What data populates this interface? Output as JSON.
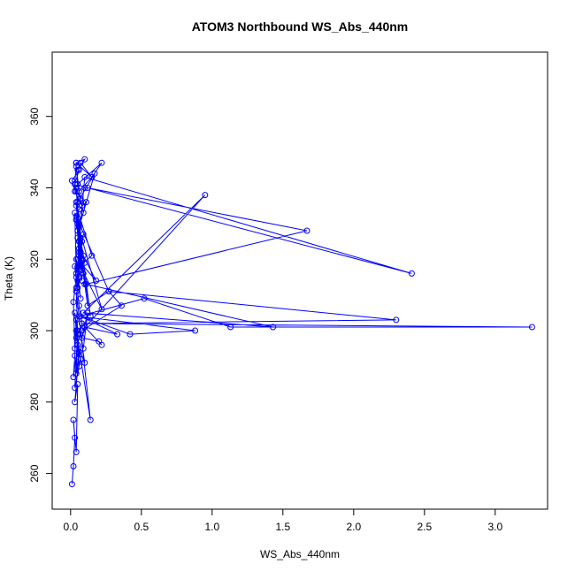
{
  "chart_data": {
    "type": "line",
    "title": "ATOM3 Northbound WS_Abs_440nm",
    "xlabel": "WS_Abs_440nm",
    "ylabel": "Theta (K)",
    "xlim": [
      -0.13,
      3.37
    ],
    "ylim": [
      250,
      378
    ],
    "xticks": [
      "0.0",
      "0.5",
      "1.0",
      "1.5",
      "2.0",
      "2.5",
      "3.0"
    ],
    "yticks": [
      "260",
      "280",
      "300",
      "320",
      "340",
      "360"
    ],
    "grid": false,
    "legend": "none",
    "series_style": "points-and-lines",
    "colors": {
      "series": "#0000ff",
      "axis": "#000000",
      "background": "#ffffff"
    },
    "series": [
      {
        "x": [
          0.01,
          0.02,
          0.03,
          0.02,
          0.04,
          0.05,
          0.03,
          0.06,
          0.04,
          0.05,
          0.03,
          0.07,
          0.04,
          0.05,
          0.02,
          0.03,
          0.04,
          0.06,
          0.03,
          0.05,
          0.04,
          0.14,
          0.04,
          0.03,
          0.02,
          0.04,
          0.05,
          0.03,
          0.06,
          0.08,
          0.05,
          0.1,
          0.07,
          0.09,
          0.12,
          0.08,
          0.2,
          0.22,
          0.1,
          0.33,
          0.07,
          0.42,
          0.88,
          0.06,
          0.52,
          1.13,
          3.26,
          0.08,
          2.3,
          0.27,
          0.36,
          0.08,
          0.95,
          0.09,
          1.43,
          0.11,
          1.67,
          0.12,
          2.41,
          0.1,
          0.06,
          0.04,
          0.07,
          0.18,
          0.09,
          0.05,
          0.06,
          0.15,
          0.04,
          0.07,
          0.05,
          0.14,
          0.06,
          0.03,
          0.04,
          0.09,
          0.05,
          0.07,
          0.04,
          0.06,
          0.05,
          0.1,
          0.06,
          0.08,
          0.07,
          0.05,
          0.09,
          0.04,
          0.06,
          0.08,
          0.05,
          0.07,
          0.1,
          0.06,
          0.04,
          0.27,
          0.12,
          0.05,
          0.07,
          0.04,
          0.06,
          0.08,
          0.05,
          0.22,
          0.07,
          0.04,
          0.06,
          0.17,
          0.05,
          0.03,
          0.04,
          0.1,
          0.05,
          0.07,
          0.15,
          0.06,
          0.04,
          0.05,
          0.08,
          0.03,
          0.11,
          0.06,
          0.04,
          0.05,
          0.09,
          0.07,
          0.04,
          0.01,
          0.06,
          0.03,
          0.04,
          0.15,
          0.22,
          0.05,
          0.1
        ],
        "y": [
          257,
          262,
          270,
          275,
          266,
          285,
          280,
          294,
          288,
          300,
          284,
          292,
          298,
          296,
          287,
          293,
          303,
          290,
          305,
          299,
          311,
          275,
          300,
          295,
          308,
          315,
          312,
          318,
          307,
          302,
          296,
          291,
          299,
          295,
          305,
          298,
          297,
          296,
          301,
          299,
          304,
          299,
          300,
          304,
          309,
          301,
          301,
          302,
          303,
          311,
          307,
          300,
          338,
          305,
          301,
          313,
          328,
          340,
          316,
          343,
          325,
          331,
          319,
          314,
          321,
          326,
          318,
          321,
          335,
          322,
          328,
          304,
          330,
          333,
          316,
          327,
          314,
          309,
          320,
          315,
          330,
          319,
          323,
          317,
          326,
          320,
          316,
          312,
          321,
          314,
          318,
          322,
          313,
          325,
          332,
          311,
          307,
          328,
          319,
          336,
          322,
          325,
          330,
          306,
          318,
          340,
          329,
          344,
          336,
          341,
          347,
          348,
          345,
          347,
          343,
          339,
          346,
          341,
          335,
          339,
          336,
          334,
          331,
          330,
          333,
          337,
          339,
          342,
          345,
          341,
          347,
          343,
          347,
          341,
          340
        ]
      }
    ]
  }
}
